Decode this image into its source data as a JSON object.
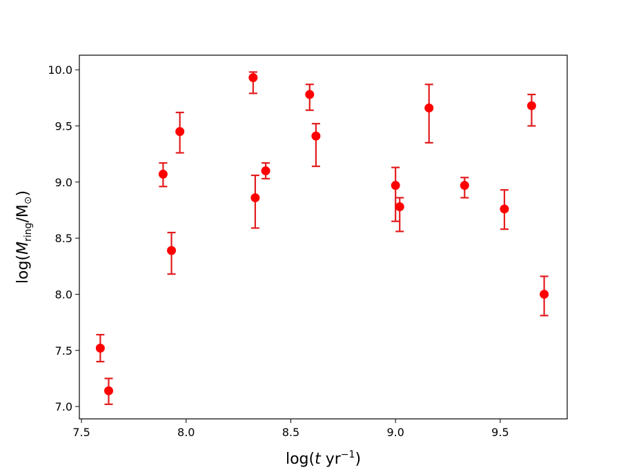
{
  "chart_data": {
    "type": "scatter",
    "title": "",
    "xlabel": {
      "prefix": "log(",
      "var": "t",
      "unit": " yr",
      "sup": "−1",
      "suffix": ")"
    },
    "ylabel": {
      "prefix": "log(",
      "var": "M",
      "sub": "ring",
      "mid": "/M",
      "sub2": "⊙",
      "suffix": ")"
    },
    "xlim": [
      7.49,
      9.82
    ],
    "ylim": [
      6.89,
      10.13
    ],
    "xticks": [
      "7.5",
      "8.0",
      "8.5",
      "9.0",
      "9.5"
    ],
    "yticks": [
      "7.0",
      "7.5",
      "8.0",
      "8.5",
      "9.0",
      "9.5",
      "10.0"
    ],
    "grid": false,
    "legend": "none",
    "marker_color": "#ff0000",
    "errorbar_color": "#e31a1c",
    "points": [
      {
        "x": 7.59,
        "y": 7.52,
        "lo": 7.4,
        "hi": 7.64
      },
      {
        "x": 7.63,
        "y": 7.14,
        "lo": 7.02,
        "hi": 7.25
      },
      {
        "x": 7.89,
        "y": 9.07,
        "lo": 8.96,
        "hi": 9.17
      },
      {
        "x": 7.93,
        "y": 8.39,
        "lo": 8.18,
        "hi": 8.55
      },
      {
        "x": 7.97,
        "y": 9.45,
        "lo": 9.26,
        "hi": 9.62
      },
      {
        "x": 8.32,
        "y": 9.93,
        "lo": 9.79,
        "hi": 9.98
      },
      {
        "x": 8.33,
        "y": 8.86,
        "lo": 8.59,
        "hi": 9.06
      },
      {
        "x": 8.38,
        "y": 9.1,
        "lo": 9.03,
        "hi": 9.17
      },
      {
        "x": 8.59,
        "y": 9.78,
        "lo": 9.64,
        "hi": 9.87
      },
      {
        "x": 8.62,
        "y": 9.41,
        "lo": 9.14,
        "hi": 9.52
      },
      {
        "x": 9.0,
        "y": 8.97,
        "lo": 8.65,
        "hi": 9.13
      },
      {
        "x": 9.02,
        "y": 8.78,
        "lo": 8.56,
        "hi": 8.86
      },
      {
        "x": 9.16,
        "y": 9.66,
        "lo": 9.35,
        "hi": 9.87
      },
      {
        "x": 9.33,
        "y": 8.97,
        "lo": 8.86,
        "hi": 9.04
      },
      {
        "x": 9.52,
        "y": 8.76,
        "lo": 8.58,
        "hi": 8.93
      },
      {
        "x": 9.65,
        "y": 9.68,
        "lo": 9.5,
        "hi": 9.78
      },
      {
        "x": 9.71,
        "y": 8.0,
        "lo": 7.81,
        "hi": 8.16
      }
    ]
  }
}
